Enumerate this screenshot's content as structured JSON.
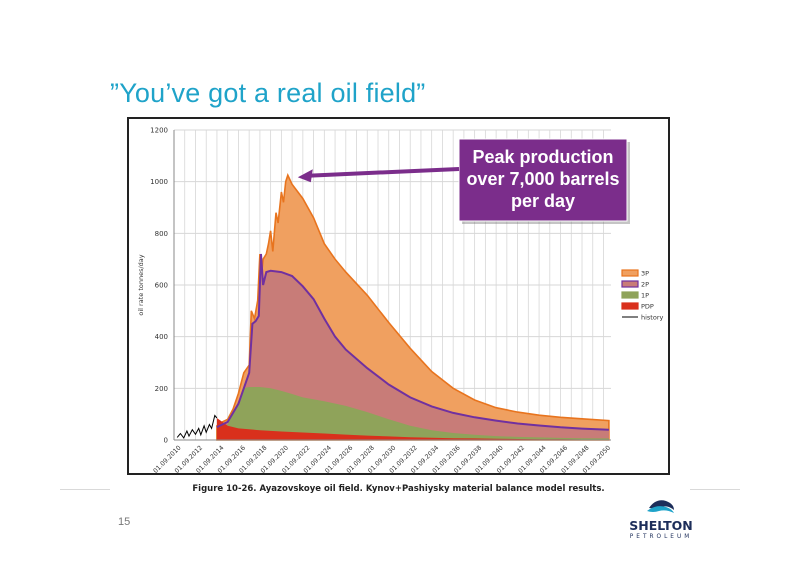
{
  "slide": {
    "title": "”You’ve got a real oil field”",
    "caption": "Figure 10-26. Ayazovskoye oil field. Kynov+Pashiysky material balance model results.",
    "page_number": "15",
    "logo_name": "SHELTON",
    "logo_sub": "PETROLEUM",
    "logo_icon": "wave-logo-icon"
  },
  "callout": {
    "lines": [
      "Peak production",
      "over 7,000 barrels",
      "per day"
    ],
    "fill": "#7b2d8b",
    "text_color": "#ffffff"
  },
  "colors": {
    "3P": "#f0a060",
    "3P_line": "#e8741e",
    "2P": "#c87c78",
    "2P_line": "#7030a0",
    "1P": "#8fa35a",
    "PDP": "#d9301c",
    "history": "#000000",
    "grid": "#d7d7d7",
    "title": "#1fa3c9"
  },
  "chart_data": {
    "type": "area",
    "xlabel": "",
    "ylabel": "oil rate tonnes/day",
    "ylim": [
      0,
      1200
    ],
    "xlim": [
      2010.0,
      2050.7
    ],
    "yticks": [
      0,
      200,
      400,
      600,
      800,
      1000,
      1200
    ],
    "xtick_labels": [
      "01.09.2010",
      "01.09.2012",
      "01.09.2014",
      "01.09.2016",
      "01.09.2018",
      "01.09.2020",
      "01.09.2022",
      "01.09.2024",
      "01.09.2026",
      "01.09.2028",
      "01.09.2030",
      "01.09.2032",
      "01.09.2034",
      "01.09.2036",
      "01.09.2038",
      "01.09.2040",
      "01.09.2042",
      "01.09.2044",
      "01.09.2046",
      "01.09.2048",
      "01.09.2050"
    ],
    "grid": true,
    "legend_position": "right",
    "series": [
      {
        "name": "3P",
        "points": [
          [
            2014.0,
            55
          ],
          [
            2014.5,
            70
          ],
          [
            2015.0,
            80
          ],
          [
            2015.5,
            120
          ],
          [
            2016.0,
            180
          ],
          [
            2016.5,
            260
          ],
          [
            2017.0,
            290
          ],
          [
            2017.2,
            500
          ],
          [
            2017.5,
            470
          ],
          [
            2017.8,
            540
          ],
          [
            2018.0,
            720
          ],
          [
            2018.1,
            620
          ],
          [
            2018.3,
            700
          ],
          [
            2018.6,
            720
          ],
          [
            2018.8,
            760
          ],
          [
            2019.0,
            810
          ],
          [
            2019.2,
            730
          ],
          [
            2019.5,
            880
          ],
          [
            2019.7,
            840
          ],
          [
            2020.0,
            960
          ],
          [
            2020.2,
            920
          ],
          [
            2020.4,
            1000
          ],
          [
            2020.6,
            1025
          ],
          [
            2021.0,
            990
          ],
          [
            2022.0,
            935
          ],
          [
            2023.0,
            860
          ],
          [
            2024.0,
            760
          ],
          [
            2025.0,
            700
          ],
          [
            2026.0,
            650
          ],
          [
            2028.0,
            560
          ],
          [
            2030.0,
            455
          ],
          [
            2032.0,
            355
          ],
          [
            2034.0,
            265
          ],
          [
            2036.0,
            200
          ],
          [
            2038.0,
            155
          ],
          [
            2040.0,
            125
          ],
          [
            2042.0,
            108
          ],
          [
            2044.0,
            96
          ],
          [
            2046.0,
            88
          ],
          [
            2048.0,
            82
          ],
          [
            2050.5,
            75
          ]
        ]
      },
      {
        "name": "2P",
        "points": [
          [
            2014.0,
            50
          ],
          [
            2015.0,
            70
          ],
          [
            2016.0,
            140
          ],
          [
            2016.5,
            200
          ],
          [
            2017.0,
            260
          ],
          [
            2017.3,
            450
          ],
          [
            2017.6,
            460
          ],
          [
            2017.9,
            480
          ],
          [
            2018.1,
            720
          ],
          [
            2018.3,
            600
          ],
          [
            2018.6,
            650
          ],
          [
            2019.0,
            655
          ],
          [
            2020.0,
            650
          ],
          [
            2021.0,
            635
          ],
          [
            2022.0,
            595
          ],
          [
            2023.0,
            545
          ],
          [
            2024.0,
            470
          ],
          [
            2025.0,
            400
          ],
          [
            2026.0,
            350
          ],
          [
            2028.0,
            278
          ],
          [
            2030.0,
            215
          ],
          [
            2032.0,
            165
          ],
          [
            2034.0,
            130
          ],
          [
            2036.0,
            105
          ],
          [
            2038.0,
            88
          ],
          [
            2040.0,
            75
          ],
          [
            2042.0,
            64
          ],
          [
            2044.0,
            56
          ],
          [
            2046.0,
            49
          ],
          [
            2048.0,
            44
          ],
          [
            2050.5,
            40
          ]
        ]
      },
      {
        "name": "1P",
        "points": [
          [
            2014.0,
            45
          ],
          [
            2015.0,
            60
          ],
          [
            2016.0,
            150
          ],
          [
            2016.5,
            200
          ],
          [
            2017.0,
            205
          ],
          [
            2018.0,
            205
          ],
          [
            2019.0,
            200
          ],
          [
            2020.0,
            190
          ],
          [
            2021.0,
            178
          ],
          [
            2022.0,
            165
          ],
          [
            2024.0,
            150
          ],
          [
            2026.0,
            132
          ],
          [
            2028.0,
            108
          ],
          [
            2030.0,
            80
          ],
          [
            2032.0,
            55
          ],
          [
            2034.0,
            38
          ],
          [
            2036.0,
            27
          ],
          [
            2038.0,
            20
          ],
          [
            2040.0,
            15
          ],
          [
            2042.0,
            12
          ],
          [
            2044.0,
            10
          ],
          [
            2046.0,
            8
          ],
          [
            2048.0,
            7
          ],
          [
            2050.5,
            6
          ]
        ]
      },
      {
        "name": "PDP",
        "points": [
          [
            2014.0,
            85
          ],
          [
            2015.0,
            55
          ],
          [
            2016.0,
            45
          ],
          [
            2018.0,
            38
          ],
          [
            2020.0,
            33
          ],
          [
            2022.0,
            29
          ],
          [
            2024.0,
            25
          ],
          [
            2026.0,
            21
          ],
          [
            2028.0,
            17
          ],
          [
            2030.0,
            14
          ],
          [
            2032.0,
            11
          ],
          [
            2034.0,
            9
          ],
          [
            2036.0,
            7
          ],
          [
            2038.0,
            6
          ],
          [
            2040.0,
            5
          ],
          [
            2042.0,
            4
          ],
          [
            2044.0,
            3
          ],
          [
            2046.0,
            3
          ],
          [
            2048.0,
            2
          ],
          [
            2050.5,
            2
          ]
        ]
      },
      {
        "name": "history",
        "points": [
          [
            2010.3,
            10
          ],
          [
            2010.6,
            25
          ],
          [
            2010.9,
            8
          ],
          [
            2011.2,
            35
          ],
          [
            2011.4,
            15
          ],
          [
            2011.7,
            40
          ],
          [
            2012.0,
            22
          ],
          [
            2012.3,
            45
          ],
          [
            2012.5,
            20
          ],
          [
            2012.8,
            55
          ],
          [
            2013.0,
            30
          ],
          [
            2013.3,
            60
          ],
          [
            2013.5,
            45
          ],
          [
            2013.8,
            95
          ],
          [
            2014.0,
            85
          ]
        ]
      }
    ]
  }
}
